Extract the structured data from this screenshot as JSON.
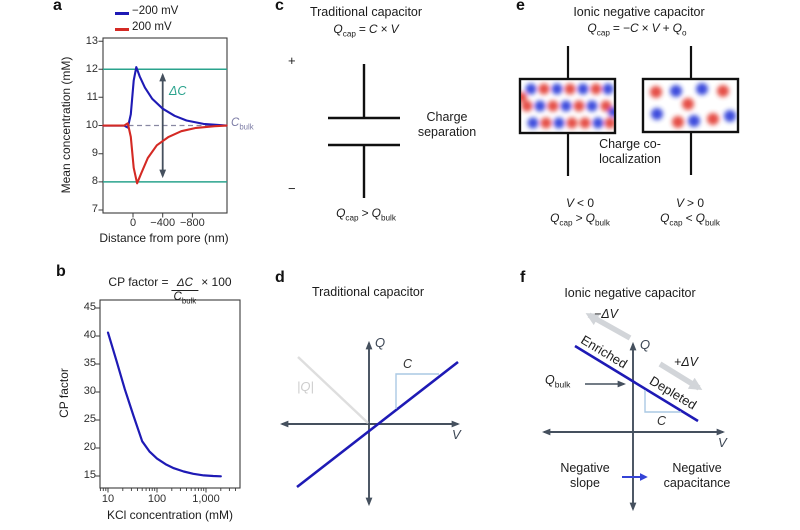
{
  "colors": {
    "curve_blue": "#1e1ab5",
    "curve_red": "#d42a24",
    "teal_green": "#2aa38d",
    "purple": "#7d7da6",
    "slate_axis": "#45505e",
    "light_gray_arrow": "#d2d5d9",
    "light_blue_marker": "#aac9e4",
    "glow_blue": "#8080f0",
    "glow_red": "#ef3c32",
    "ion_blue": "#2838d8",
    "ion_red": "#e23b30",
    "arrow_blue": "#3443d6",
    "dashed_purple": "#8888a2"
  },
  "sym": {
    "Q": "Q",
    "C": "C",
    "V": "V",
    "cap": "cap",
    "bulk": "bulk",
    "o": "o",
    "eq": "=",
    "times": "×",
    "plus": "+",
    "gt": ">",
    "lt": "<",
    "negC": "−C",
    "lt0": "< 0",
    "gt0": "> 0",
    "dC": "ΔC"
  },
  "panel_a": {
    "label": "a",
    "legend": [
      {
        "label": "−200 mV"
      },
      {
        "label": "200 mV"
      }
    ],
    "ylabel": "Mean concentration (mM)",
    "xlabel": "Distance from pore (nm)",
    "yticks": [
      "13",
      "12",
      "11",
      "10",
      "9",
      "8",
      "7"
    ],
    "xticks": [
      "0",
      "−400",
      "−800"
    ]
  },
  "panel_b": {
    "label": "b",
    "formula_lhs": "CP factor = ",
    "formula_rhs": "× 100",
    "ylabel": "CP factor",
    "xlabel": "KCl concentration (mM)",
    "yticks": [
      "45",
      "40",
      "35",
      "30",
      "25",
      "20",
      "15"
    ],
    "xticks": [
      "10",
      "100",
      "1,000"
    ]
  },
  "panel_c": {
    "label": "c",
    "title": "Traditional capacitor",
    "plus": "+",
    "minus": "−",
    "annotation": "Charge separation"
  },
  "panel_d": {
    "label": "d",
    "title": "Traditional capacitor",
    "q_axis": "Q",
    "v_axis": "V",
    "abs_q": "|Q|",
    "c": "C"
  },
  "panel_e": {
    "label": "e",
    "title": "Ionic negative capacitor",
    "annotation": "Charge co-localization"
  },
  "panel_f": {
    "label": "f",
    "title": "Ionic negative capacitor",
    "q_axis": "Q",
    "v_axis": "V",
    "minus_dv": "−ΔV",
    "plus_dv": "+ΔV",
    "enriched": "Enriched",
    "depleted": "Depleted",
    "c": "C",
    "neg_slope": "Negative slope",
    "neg_cap": "Negative capacitance"
  },
  "chart_data": [
    {
      "key": "a",
      "type": "line",
      "xlabel": "Distance from pore (nm)",
      "ylabel": "Mean concentration (mM)",
      "xticks": [
        0,
        -400,
        -800
      ],
      "x_axis_reversed": true,
      "ylim": [
        7,
        13
      ],
      "annotations": {
        "hlines": [
          12,
          8
        ],
        "dashed_hline": 10,
        "dashed_label": "C_bulk",
        "arrow_label": "ΔC",
        "arrow_x": -400,
        "arrow_span": [
          8,
          12
        ]
      },
      "series": [
        {
          "name": "−200 mV",
          "color": "#1e1ab5",
          "points": [
            [
              400,
              10
            ],
            [
              120,
              10
            ],
            [
              70,
              9.93
            ],
            [
              30,
              10.4
            ],
            [
              -10,
              11.6
            ],
            [
              -44,
              12.08
            ],
            [
              -90,
              11.75
            ],
            [
              -160,
              11.35
            ],
            [
              -260,
              10.95
            ],
            [
              -400,
              10.6
            ],
            [
              -560,
              10.35
            ],
            [
              -720,
              10.18
            ],
            [
              -950,
              10.06
            ],
            [
              -1260,
              10
            ]
          ]
        },
        {
          "name": "200 mV",
          "color": "#d42a24",
          "points": [
            [
              400,
              10
            ],
            [
              120,
              10
            ],
            [
              70,
              10.08
            ],
            [
              30,
              9.6
            ],
            [
              -10,
              8.5
            ],
            [
              -55,
              7.95
            ],
            [
              -110,
              8.3
            ],
            [
              -200,
              8.85
            ],
            [
              -320,
              9.3
            ],
            [
              -480,
              9.6
            ],
            [
              -650,
              9.8
            ],
            [
              -850,
              9.92
            ],
            [
              -1100,
              9.98
            ],
            [
              -1260,
              10
            ]
          ]
        }
      ]
    },
    {
      "key": "b",
      "type": "line",
      "xscale": "log",
      "xlabel": "KCl concentration (mM)",
      "ylabel": "CP factor",
      "xticks": [
        10,
        100,
        1000
      ],
      "ylim": [
        15,
        45
      ],
      "series": [
        {
          "name": "CP factor",
          "color": "#1e1ab5",
          "points": [
            [
              10,
              40.6
            ],
            [
              15,
              35.5
            ],
            [
              22,
              30.5
            ],
            [
              33,
              25.8
            ],
            [
              50,
              21.2
            ],
            [
              70,
              19.4
            ],
            [
              100,
              18.1
            ],
            [
              150,
              17.1
            ],
            [
              220,
              16.4
            ],
            [
              350,
              15.8
            ],
            [
              550,
              15.4
            ],
            [
              900,
              15.1
            ],
            [
              1400,
              15
            ],
            [
              2000,
              14.95
            ]
          ]
        }
      ]
    }
  ]
}
